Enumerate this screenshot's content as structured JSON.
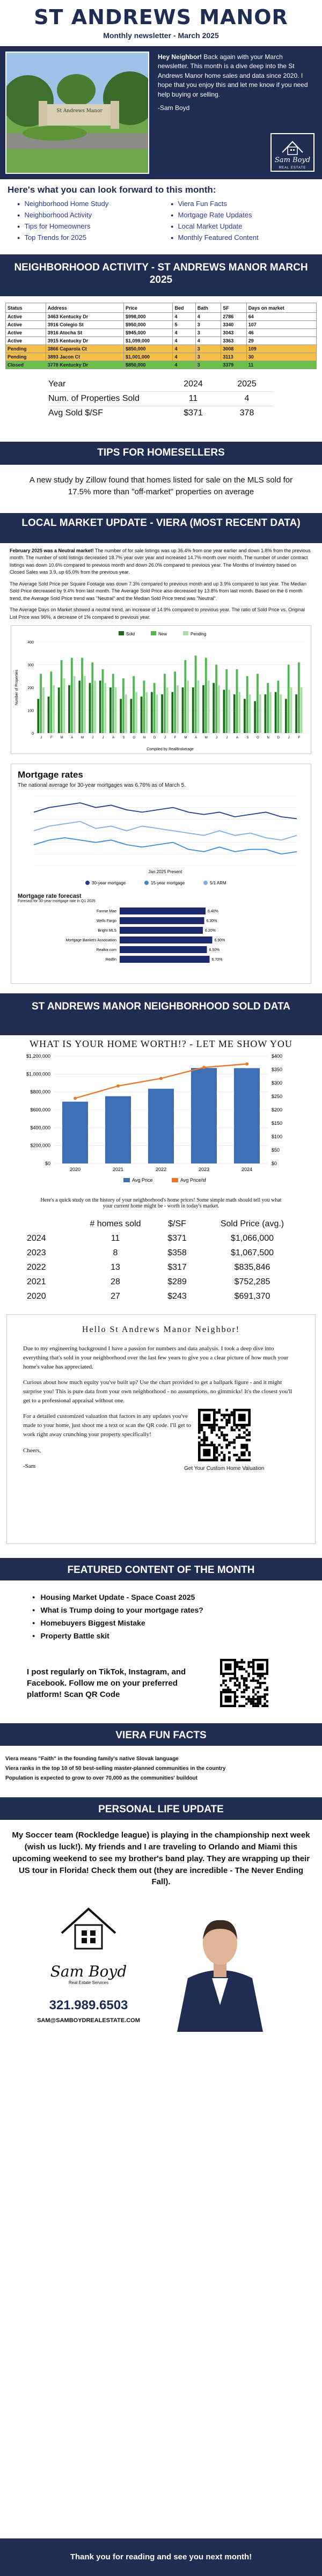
{
  "header": {
    "title": "ST ANDREWS MANOR",
    "subtitle": "Monthly newsletter - March 2025"
  },
  "hero": {
    "greeting_bold": "Hey Neighbor!",
    "greeting_rest": " Back again with your March newsletter. This month is a dive deep into the St Andrews Manor home sales and data since 2020. I hope that you enjoy this and let me know if you need help buying or selling.",
    "signoff": "-Sam Boyd",
    "photo_sign_text": "St Andrews Manor",
    "logo_name": "Sam Boyd",
    "logo_tagline": "REAL ESTATE"
  },
  "forward": {
    "heading": "Here's what you can look forward to this month:",
    "left": [
      "Neighborhood Home Study",
      "Neighborhood Activity",
      "Tips for Homeowners",
      "Top Trends for 2025"
    ],
    "right": [
      "Viera Fun Facts",
      "Mortgage Rate Updates",
      "Local Market Update",
      "Monthly Featured Content"
    ]
  },
  "activity": {
    "band": "NEIGHBORHOOD ACTIVITY - ST ANDREWS MANOR MARCH 2025",
    "columns": [
      "Status",
      "Address",
      "Price",
      "Bed",
      "Bath",
      "SF",
      "Days on market"
    ],
    "rows": [
      {
        "kind": "active",
        "cells": [
          "Active",
          "3463 Kentucky Dr",
          "$998,000",
          "4",
          "4",
          "2786",
          "64"
        ]
      },
      {
        "kind": "active",
        "cells": [
          "Active",
          "3916 Colegio St",
          "$950,000",
          "5",
          "3",
          "3340",
          "107"
        ]
      },
      {
        "kind": "active",
        "cells": [
          "Active",
          "3916 Atocha St",
          "$945,000",
          "4",
          "3",
          "3043",
          "46"
        ]
      },
      {
        "kind": "active",
        "cells": [
          "Active",
          "3915 Kentucky Dr",
          "$1,099,000",
          "4",
          "4",
          "3363",
          "29"
        ]
      },
      {
        "kind": "pending",
        "cells": [
          "Pending",
          "3866 Caparola Ct",
          "$850,000",
          "4",
          "3",
          "3008",
          "109"
        ]
      },
      {
        "kind": "pending",
        "cells": [
          "Pending",
          "3893 Jacon Ct",
          "$1,001,000",
          "4",
          "3",
          "3113",
          "30"
        ]
      },
      {
        "kind": "closed",
        "cells": [
          "Closed",
          "3778 Kentucky Dr",
          "$850,000",
          "4",
          "3",
          "3379",
          "11"
        ]
      }
    ],
    "stats": {
      "header": [
        "Year",
        "2024",
        "2025"
      ],
      "rows": [
        [
          "Num. of Properties Sold",
          "11",
          "4"
        ],
        [
          "Avg Sold $/SF",
          "$371",
          "378"
        ]
      ]
    }
  },
  "tips": {
    "band": "TIPS FOR HOMESELLERS",
    "text": "A new study by Zillow found that homes listed for sale on the MLS sold for 17.5% more than \"off-market\" properties on average"
  },
  "market": {
    "band": "LOCAL MARKET UPDATE - VIERA (MOST RECENT DATA)",
    "p1_bold": "February 2025 was a Neutral market!",
    "p1": " The number of for sale listings was up 36.4% from one year earlier and down 1.8% from the previous month. The number of sold listings decreased 18.7% year over year and increased 14.7% month over month. The number of under contract listings was down 10.6% compared to previous month and down 26.0% compared to previous year. The Months of Inventory based on Closed Sales was 3.9, up 65.0% from the previous year.",
    "p2": "The Average Sold Price per Square Footage was down 7.3% compared to previous month and up 3.9% compared to last year. The Median Sold Price decreased by 9.4% from last month. The Average Sold Price also decreased by 13.8% from last month. Based on the 6 month trend, the Average Sold Price trend was \"Neutral\" and the Median Sold Price trend was \"Neutral\".",
    "p3": "The Average Days on Market showed a neutral trend, an increase of 14.9% compared to previous year. The ratio of Sold Price vs. Original List Price was 96%, a decrease of 1% compared to previous year.",
    "legend": [
      "Sold",
      "New",
      "Pending"
    ],
    "x_caption": "Compiled by RealBrokerage",
    "y_caption": "Number of Properties",
    "green": "#3a9a3a"
  },
  "mortgage": {
    "title": "Mortgage rates",
    "subtitle": "The national average for 30-year mortgages was 6.76% as of March 5.",
    "legend": [
      "30-year mortgage",
      "15-year mortgage",
      "5/1 ARM"
    ],
    "x_note": "Jan 2025 Present",
    "forecast_title": "Mortgage rate forecast",
    "forecast_sub": "Forecast for 30-year mortgage rate in Q1 2025",
    "forecast": [
      {
        "label": "Fannie Mae",
        "value": "6.40%"
      },
      {
        "label": "Wells Fargo",
        "value": "6.30%"
      },
      {
        "label": "Bright MLS",
        "value": "6.20%"
      },
      {
        "label": "Mortgage Bankers Association",
        "value": "6.90%"
      },
      {
        "label": "Realtor.com",
        "value": "6.50%"
      },
      {
        "label": "Redfin",
        "value": "6.70%"
      }
    ]
  },
  "sold": {
    "band": "ST ANDREWS MANOR NEIGHBORHOOD SOLD DATA",
    "chart_title": "WHAT IS YOUR HOME WORTH!? - LET ME SHOW YOU",
    "legend": [
      "Avg Price",
      "Avg Price/sf"
    ],
    "note": "Here's a quick study on the history of your neighborhood's home prices! Some simple math should tell you what your current home might be - worth in today's market.",
    "table_header": [
      "",
      "# homes sold",
      "$/SF",
      "Sold Price (avg.)"
    ],
    "table": [
      [
        "2024",
        "11",
        "$371",
        "$1,066,000"
      ],
      [
        "2023",
        "8",
        "$358",
        "$1,067,500"
      ],
      [
        "2022",
        "13",
        "$317",
        "$835,846"
      ],
      [
        "2021",
        "28",
        "$289",
        "$752,285"
      ],
      [
        "2020",
        "27",
        "$243",
        "$691,370"
      ]
    ]
  },
  "chart_data": [
    {
      "type": "bar",
      "title": "",
      "categories": [
        "J",
        "F",
        "M",
        "A",
        "M",
        "J",
        "J",
        "A",
        "S",
        "O",
        "N",
        "D",
        "J",
        "F",
        "M",
        "A",
        "M",
        "J",
        "J",
        "A",
        "S",
        "O",
        "N",
        "D",
        "J",
        "F"
      ],
      "series": [
        {
          "name": "Sold",
          "values": [
            150,
            160,
            200,
            210,
            230,
            220,
            230,
            200,
            150,
            150,
            160,
            180,
            170,
            180,
            200,
            200,
            210,
            220,
            190,
            170,
            150,
            140,
            170,
            180,
            150,
            170
          ]
        },
        {
          "name": "New",
          "values": [
            260,
            270,
            320,
            330,
            330,
            310,
            280,
            260,
            240,
            250,
            230,
            220,
            260,
            270,
            320,
            340,
            330,
            300,
            280,
            280,
            250,
            260,
            220,
            230,
            300,
            310
          ]
        },
        {
          "name": "Pending",
          "values": [
            200,
            210,
            240,
            250,
            250,
            230,
            220,
            200,
            170,
            180,
            180,
            170,
            200,
            210,
            230,
            230,
            230,
            210,
            190,
            180,
            170,
            170,
            180,
            170,
            200,
            200
          ]
        }
      ],
      "ylabel": "Number of Properties",
      "ylim": [
        0,
        400
      ]
    },
    {
      "type": "line",
      "title": "Mortgage rates",
      "series": [
        {
          "name": "30-year mortgage",
          "values": [
            6.9,
            7.0,
            7.05,
            7.1,
            7.0,
            7.05,
            6.95,
            6.9,
            6.95,
            7.0,
            6.9,
            6.85,
            6.9,
            6.8,
            6.85,
            6.9,
            6.8,
            6.76
          ]
        },
        {
          "name": "15-year mortgage",
          "values": [
            6.2,
            6.3,
            6.35,
            6.3,
            6.25,
            6.3,
            6.2,
            6.15,
            6.2,
            6.25,
            6.1,
            6.05,
            6.15,
            6.05,
            6.1,
            6.1,
            6.0,
            6.05
          ]
        },
        {
          "name": "5/1 ARM",
          "values": [
            6.5,
            6.6,
            6.65,
            6.7,
            6.55,
            6.6,
            6.5,
            6.6,
            6.55,
            6.5,
            6.45,
            6.4,
            6.5,
            6.4,
            6.45,
            6.35,
            6.3,
            6.4
          ]
        }
      ],
      "ylim": [
        5.75,
        7.25
      ]
    },
    {
      "type": "bar",
      "title": "Mortgage rate forecast",
      "categories": [
        "Fannie Mae",
        "Wells Fargo",
        "Bright MLS",
        "Mortgage Bankers Association",
        "Realtor.com",
        "Redfin"
      ],
      "values": [
        6.4,
        6.3,
        6.2,
        6.9,
        6.5,
        6.7
      ],
      "xlim": [
        0,
        8
      ]
    },
    {
      "type": "bar",
      "title": "WHAT IS YOUR HOME WORTH!? - LET ME SHOW YOU",
      "categories": [
        "2020",
        "2021",
        "2022",
        "2023",
        "2024"
      ],
      "series": [
        {
          "name": "Avg Price",
          "values": [
            691370,
            752285,
            835846,
            1067500,
            1066000
          ]
        },
        {
          "name": "Avg Price/sf",
          "values": [
            243,
            289,
            317,
            358,
            371
          ]
        }
      ],
      "ylim": [
        0,
        1200000
      ],
      "y2lim": [
        0,
        400
      ]
    }
  ],
  "letter": {
    "greeting": "Hello St Andrews Manor Neighbor!",
    "p1": "Due to my engineering background I have a passion for numbers and data analysis. I took a deep dive into everything that's sold in your neighborhood over the last few years to give you a clear picture of how much your home's value has appreciated.",
    "p2": "Curious about how much equity you've built up? Use the chart provided to get a ballpark figure - and it might surprise you! This is pure data from your own neighborhood - no assumptions, no gimmicks! It's the closest you'll get to a professional appraisal without one.",
    "p3": "For a detailed customized valuation that factors in any updates you've made to your home, just shoot me a text or scan the QR code. I'll get to work right away crunching your property specifically!",
    "closing": "Cheers,",
    "name": "-Sam",
    "qr_caption": "Get Your Custom Home Valuation"
  },
  "featured": {
    "band": "FEATURED CONTENT OF THE MONTH",
    "items": [
      "Housing Market Update - Space Coast 2025",
      "What is Trump doing to your mortgage rates?",
      "Homebuyers Biggest Mistake",
      "Property Battle skit"
    ],
    "social": "I post regularly on TikTok, Instagram, and Facebook. Follow me on your preferred platform! Scan QR Code"
  },
  "fun": {
    "band": "VIERA FUN FACTS",
    "facts": [
      "Viera means \"Faith\" in the founding family's native Slovak language",
      "Viera ranks in the top 10 of 50 best-selling master-planned communities in the country",
      "Population is expected to grow to over 70,000 as the communities' buildout"
    ]
  },
  "personal": {
    "band": "PERSONAL LIFE UPDATE",
    "text": "My Soccer team (Rockledge league) is playing in the championship next week (wish us luck!). My friends and I are traveling to Orlando and Miami this upcoming weekend to see my brother's band play. They are wrapping up their US tour in Florida! Check them out (they are incredible - The Never Ending Fall)."
  },
  "contact": {
    "logo_name": "Sam Boyd",
    "logo_tagline": "Real Estate Services",
    "phone": "321.989.6503",
    "email": "SAM@SAMBOYDREALESTATE.COM",
    "footer": "Thank you for reading and see you next month!"
  },
  "colors": {
    "navy": "#1f2d52",
    "pending": "#f5c04a",
    "closed": "#6cc04a",
    "orange": "#e8782a",
    "bar_blue": "#3d6fb5"
  }
}
